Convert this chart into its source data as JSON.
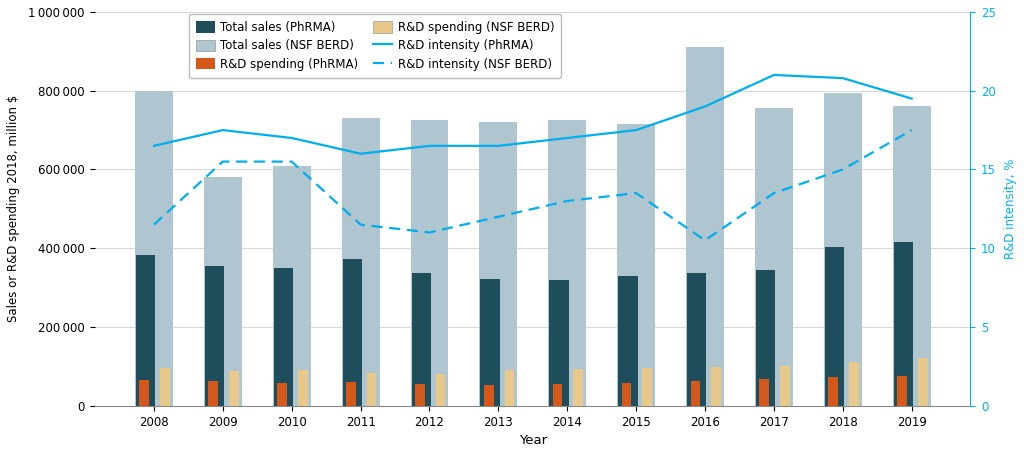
{
  "years": [
    2008,
    2009,
    2010,
    2011,
    2012,
    2013,
    2014,
    2015,
    2016,
    2017,
    2018,
    2019
  ],
  "total_sales_phrma": [
    383000,
    356000,
    350000,
    372000,
    336000,
    323000,
    319000,
    330000,
    336000,
    344000,
    404000,
    416000
  ],
  "total_sales_nsf": [
    800000,
    580000,
    610000,
    730000,
    725000,
    720000,
    725000,
    715000,
    910000,
    755000,
    795000,
    760000
  ],
  "rd_spending_phrma": [
    65000,
    63000,
    57000,
    60000,
    55000,
    53000,
    55000,
    58000,
    63000,
    68000,
    73000,
    75000
  ],
  "rd_spending_nsf": [
    95000,
    88000,
    90000,
    83000,
    80000,
    90000,
    93000,
    95000,
    98000,
    100000,
    110000,
    122000
  ],
  "rd_intensity_phrma": [
    16.5,
    17.5,
    17.0,
    16.0,
    16.5,
    16.5,
    17.0,
    17.5,
    19.0,
    21.0,
    20.8,
    19.5
  ],
  "rd_intensity_nsf": [
    11.5,
    15.5,
    15.5,
    11.5,
    11.0,
    12.0,
    13.0,
    13.5,
    10.5,
    13.5,
    15.0,
    17.5
  ],
  "bar_color_phrma_total": "#1e4d5c",
  "bar_color_nsf_total": "#afc5d0",
  "bar_color_phrma_rd": "#d4581a",
  "bar_color_nsf_rd": "#e8c98a",
  "line_color": "#00aeef",
  "ylabel_left": "Sales or R&D spending 2018, million $",
  "ylabel_right": "R&D intensity, %",
  "xlabel": "Year",
  "legend_items": [
    "Total sales (PhRMA)",
    "Total sales (NSF BERD)",
    "R&D spending (PhRMA)",
    "R&D spending (NSF BERD)",
    "R&D intensity (PhRMA)",
    "R&D intensity (NSF BERD)"
  ],
  "ylim_left": [
    0,
    1000000
  ],
  "ylim_right": [
    0,
    25
  ],
  "yticks_left": [
    0,
    200000,
    400000,
    600000,
    800000,
    1000000
  ],
  "yticks_right": [
    0,
    5,
    10,
    15,
    20,
    25
  ],
  "background": "#ffffff",
  "nsf_bar_width": 0.55,
  "phrma_bar_width": 0.28,
  "rd_bar_width": 0.14
}
